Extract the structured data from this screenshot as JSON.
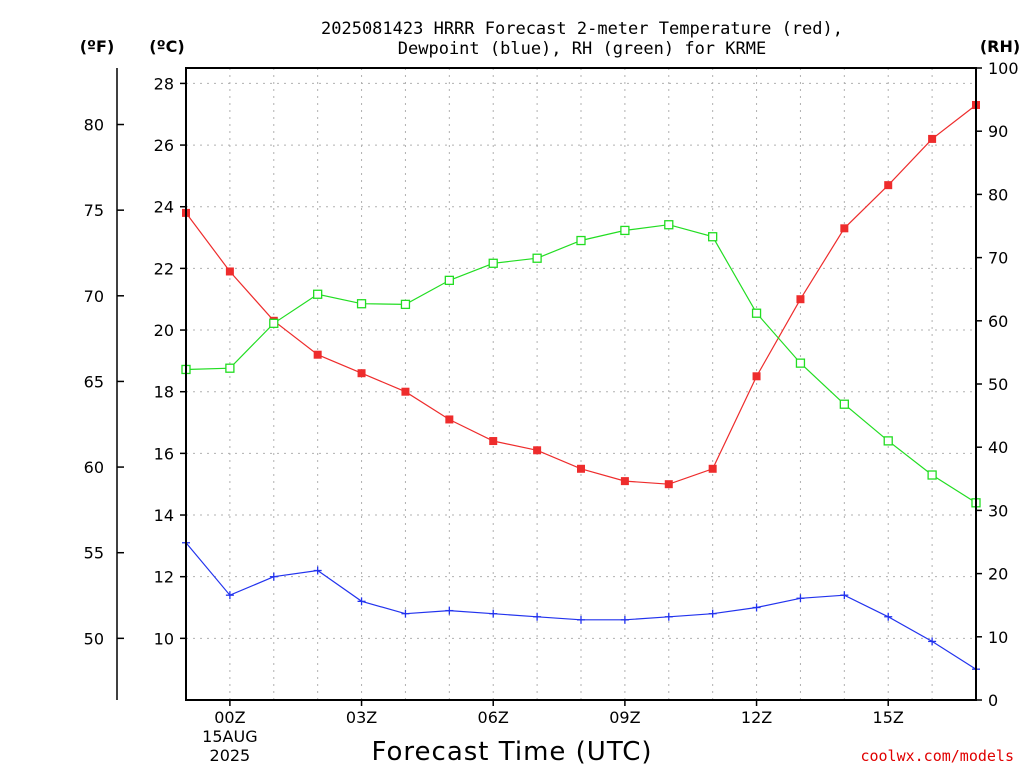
{
  "chart_data": {
    "type": "line",
    "title_line1": "2025081423 HRRR Forecast 2-meter Temperature (red),",
    "title_line2": "Dewpoint (blue), RH (green) for KRME",
    "xlabel": "Forecast Time (UTC)",
    "credit": "coolwx.com/models",
    "units": {
      "fahrenheit": "(ºF)",
      "celsius": "(ºC)",
      "rh": "(RH)"
    },
    "x_hours": [
      -1,
      0,
      1,
      2,
      3,
      4,
      5,
      6,
      7,
      8,
      9,
      10,
      11,
      12,
      13,
      14,
      15,
      16,
      17
    ],
    "x_ticks": [
      {
        "hour": 0,
        "label": "00Z",
        "sub1": "15AUG",
        "sub2": "2025"
      },
      {
        "hour": 3,
        "label": "03Z",
        "sub1": "",
        "sub2": ""
      },
      {
        "hour": 6,
        "label": "06Z",
        "sub1": "",
        "sub2": ""
      },
      {
        "hour": 9,
        "label": "09Z",
        "sub1": "",
        "sub2": ""
      },
      {
        "hour": 12,
        "label": "12Z",
        "sub1": "",
        "sub2": ""
      },
      {
        "hour": 15,
        "label": "15Z",
        "sub1": "",
        "sub2": ""
      }
    ],
    "xlim": [
      -1,
      17
    ],
    "ylim_celsius": [
      8,
      28.5
    ],
    "ylim_rh": [
      0,
      100
    ],
    "y_ticks_celsius": [
      10,
      12,
      14,
      16,
      18,
      20,
      22,
      24,
      26,
      28
    ],
    "y_ticks_fahrenheit": [
      50,
      55,
      60,
      65,
      70,
      75,
      80
    ],
    "y_ticks_rh": [
      0,
      10,
      20,
      30,
      40,
      50,
      60,
      70,
      80,
      90,
      100
    ],
    "grid": true,
    "series": [
      {
        "name": "Temperature",
        "axis": "celsius",
        "color": "#ee2c2c",
        "marker": "filled-square",
        "values": [
          23.8,
          21.9,
          20.3,
          19.2,
          18.6,
          18.0,
          17.1,
          16.4,
          16.1,
          15.5,
          15.1,
          15.0,
          15.5,
          18.5,
          21.0,
          23.3,
          24.7,
          26.2,
          27.3
        ]
      },
      {
        "name": "Dewpoint",
        "axis": "celsius",
        "color": "#2233ee",
        "marker": "plus",
        "values": [
          13.1,
          11.4,
          12.0,
          12.2,
          11.2,
          10.8,
          10.9,
          10.8,
          10.7,
          10.6,
          10.6,
          10.7,
          10.8,
          11.0,
          11.3,
          11.4,
          10.7,
          9.9,
          9.0
        ]
      },
      {
        "name": "RH",
        "axis": "rh",
        "color": "#22dd22",
        "marker": "open-square",
        "values": [
          52.3,
          52.5,
          59.6,
          64.2,
          62.7,
          62.6,
          66.4,
          69.1,
          69.9,
          72.7,
          74.3,
          75.2,
          73.3,
          61.2,
          53.3,
          46.8,
          41.0,
          35.6,
          31.2
        ]
      }
    ]
  }
}
